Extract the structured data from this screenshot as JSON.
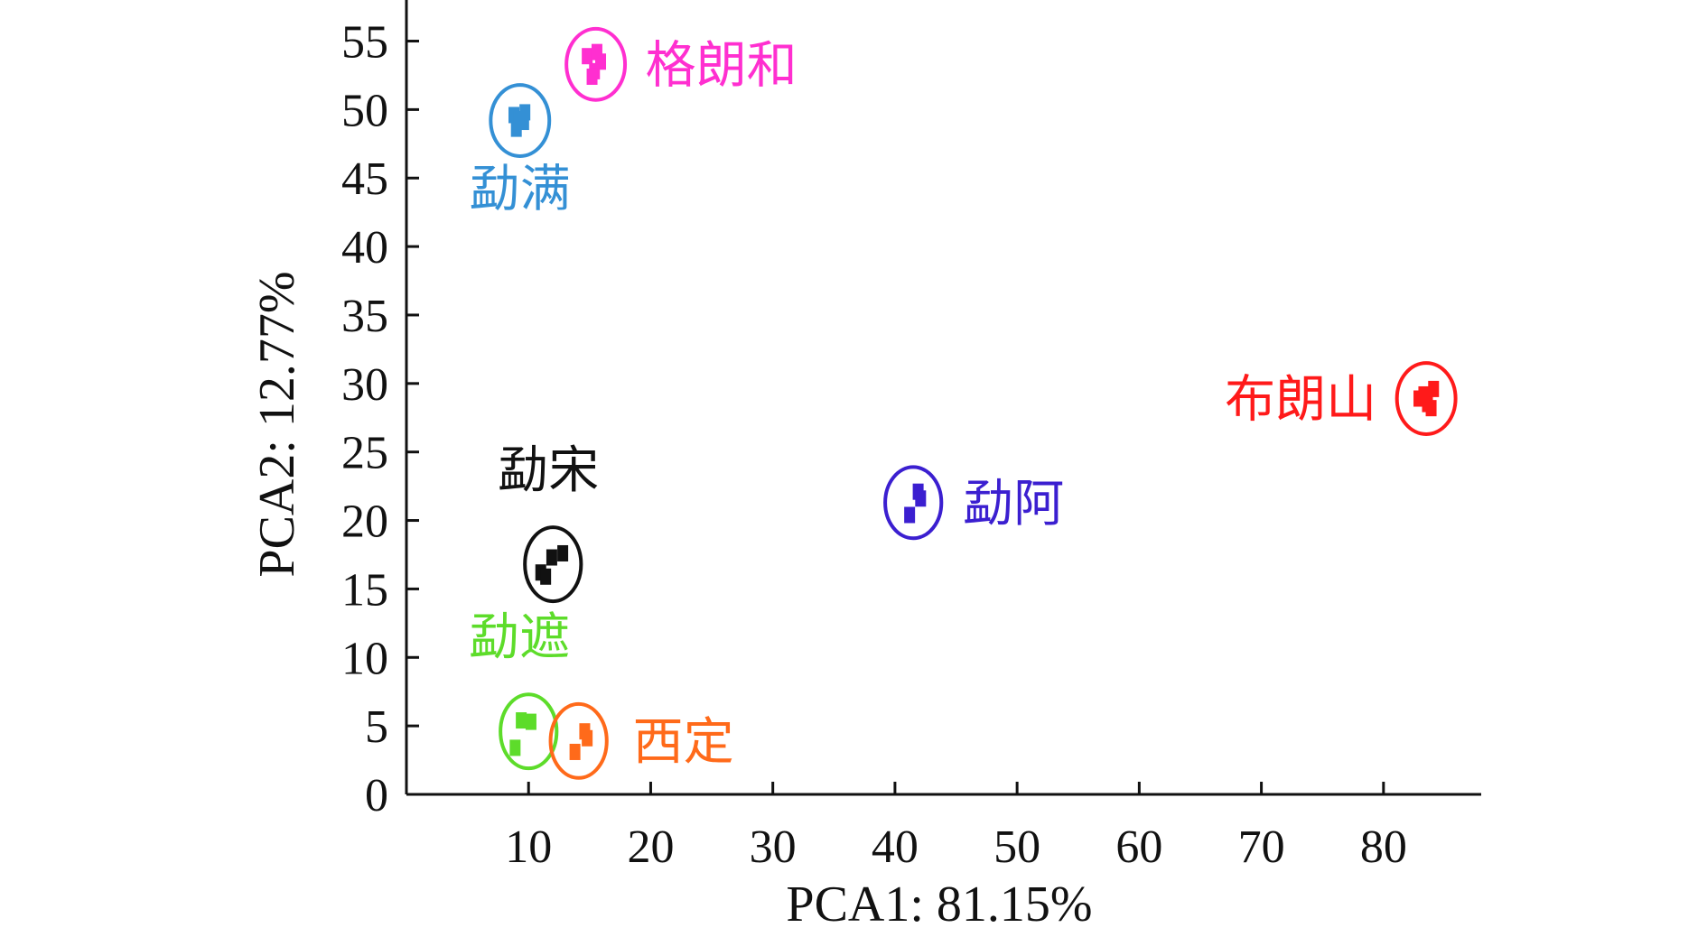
{
  "chart_data": {
    "type": "scatter",
    "title": "",
    "xlabel": "PCA1: 81.15%",
    "ylabel": "PCA2: 12.77%",
    "xlim": [
      0,
      88
    ],
    "ylim": [
      0,
      58
    ],
    "xticks": [
      10,
      20,
      30,
      40,
      50,
      60,
      70,
      80
    ],
    "yticks": [
      0,
      5,
      10,
      15,
      20,
      25,
      30,
      35,
      40,
      45,
      50,
      55
    ],
    "grid": false,
    "groups": [
      {
        "name": "格朗和",
        "color": "#ff2fd0",
        "ellipse": {
          "center": [
            15.5,
            53.3
          ],
          "rx": 2.4,
          "ry": 2.6
        },
        "points": [
          [
            14.8,
            53.9
          ],
          [
            15.4,
            52.8
          ],
          [
            15.9,
            53.5
          ],
          [
            15.6,
            54.2
          ],
          [
            15.2,
            52.4
          ]
        ]
      },
      {
        "name": "勐满",
        "color": "#3490d5",
        "ellipse": {
          "center": [
            9.3,
            49.2
          ],
          "rx": 2.4,
          "ry": 2.6
        },
        "points": [
          [
            8.8,
            49.6
          ],
          [
            9.6,
            49.1
          ],
          [
            9.0,
            48.6
          ],
          [
            9.7,
            49.8
          ],
          [
            9.2,
            49.3
          ]
        ]
      },
      {
        "name": "布朗山",
        "color": "#ff1a1a",
        "ellipse": {
          "center": [
            83.5,
            28.9
          ],
          "rx": 2.4,
          "ry": 2.6
        },
        "points": [
          [
            82.9,
            28.9
          ],
          [
            83.6,
            28.5
          ],
          [
            84.1,
            29.6
          ],
          [
            83.3,
            29.2
          ],
          [
            83.9,
            28.2
          ]
        ]
      },
      {
        "name": "勐阿",
        "color": "#3b1fd0",
        "ellipse": {
          "center": [
            41.5,
            21.3
          ],
          "rx": 2.3,
          "ry": 2.6
        },
        "points": [
          [
            41.9,
            22.1
          ],
          [
            41.2,
            20.4
          ],
          [
            42.1,
            21.6
          ]
        ]
      },
      {
        "name": "勐宋",
        "color": "#111111",
        "ellipse": {
          "center": [
            12.0,
            16.8
          ],
          "rx": 2.3,
          "ry": 2.7
        },
        "points": [
          [
            11.0,
            16.2
          ],
          [
            11.9,
            17.3
          ],
          [
            12.8,
            17.6
          ],
          [
            11.4,
            15.9
          ]
        ]
      },
      {
        "name": "勐遮",
        "color": "#5ddc2a",
        "ellipse": {
          "center": [
            10.0,
            4.6
          ],
          "rx": 2.3,
          "ry": 2.7
        },
        "points": [
          [
            9.4,
            5.4
          ],
          [
            10.2,
            5.3
          ],
          [
            8.9,
            3.4
          ]
        ]
      },
      {
        "name": "西定",
        "color": "#ff6a1a",
        "ellipse": {
          "center": [
            14.1,
            3.9
          ],
          "rx": 2.3,
          "ry": 2.7
        },
        "points": [
          [
            14.6,
            4.6
          ],
          [
            14.8,
            4.1
          ],
          [
            13.8,
            3.1
          ]
        ]
      }
    ]
  }
}
